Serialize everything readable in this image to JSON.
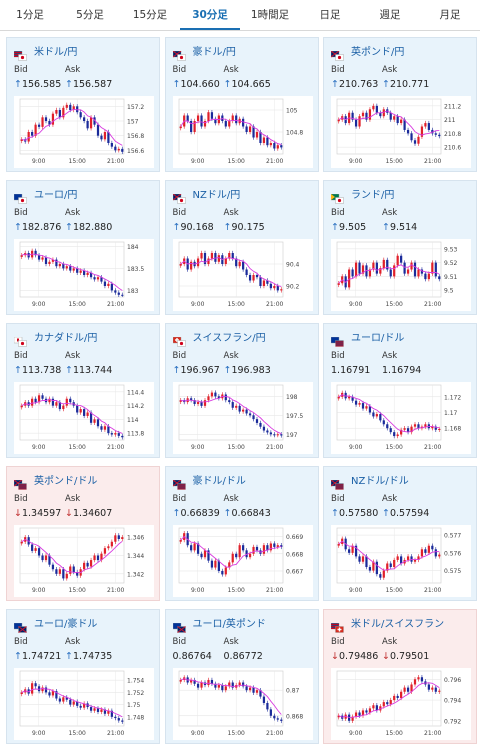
{
  "tabs": [
    {
      "label": "1分足",
      "active": false
    },
    {
      "label": "5分足",
      "active": false
    },
    {
      "label": "15分足",
      "active": false
    },
    {
      "label": "30分足",
      "active": true
    },
    {
      "label": "1時間足",
      "active": false
    },
    {
      "label": "日足",
      "active": false
    },
    {
      "label": "週足",
      "active": false
    },
    {
      "label": "月足",
      "active": false
    }
  ],
  "labels": {
    "bid": "Bid",
    "ask": "Ask"
  },
  "colors": {
    "up_candle": "#e0202a",
    "down_candle": "#1a2a9a",
    "ma_line": "#d83be0",
    "link": "#1a5fa5",
    "arrow_up": "#2a6fc0",
    "arrow_down": "#c03030"
  },
  "cards": [
    {
      "pair": "米ドル/円",
      "flag": "us-jp",
      "bid": "156.585",
      "ask": "156.587",
      "dir": "up",
      "chart_data": {
        "type": "candlestick",
        "x_ticks": [
          "9:00",
          "15:00",
          "21:00"
        ],
        "y_ticks": [
          "157.2",
          "157",
          "156.8",
          "156.6"
        ],
        "y_range": [
          156.55,
          157.3
        ],
        "closes": [
          156.75,
          156.72,
          156.85,
          156.8,
          156.95,
          156.92,
          157.05,
          157.0,
          156.95,
          157.1,
          157.15,
          157.05,
          157.18,
          157.22,
          157.15,
          157.2,
          157.12,
          157.05,
          157.0,
          156.9,
          157.05,
          156.95,
          156.8,
          156.75,
          156.85,
          156.7,
          156.65,
          156.6,
          156.62,
          156.58
        ]
      }
    },
    {
      "pair": "豪ドル/円",
      "flag": "au-jp",
      "bid": "104.660",
      "ask": "104.665",
      "dir": "up",
      "chart_data": {
        "type": "candlestick",
        "x_ticks": [
          "9:00",
          "15:00",
          "21:00"
        ],
        "y_ticks": [
          "105",
          "104.8"
        ],
        "y_range": [
          104.6,
          105.1
        ],
        "closes": [
          104.85,
          104.95,
          104.9,
          104.8,
          104.9,
          104.95,
          104.85,
          104.9,
          104.98,
          104.92,
          104.88,
          104.95,
          104.9,
          104.85,
          104.9,
          104.95,
          104.88,
          104.92,
          104.85,
          104.8,
          104.85,
          104.75,
          104.8,
          104.7,
          104.75,
          104.68,
          104.7,
          104.65,
          104.68,
          104.66
        ]
      }
    },
    {
      "pair": "英ポンド/円",
      "flag": "gb-jp",
      "bid": "210.763",
      "ask": "210.771",
      "dir": "up",
      "chart_data": {
        "type": "candlestick",
        "x_ticks": [
          "9:00",
          "15:00",
          "21:00"
        ],
        "y_ticks": [
          "211.2",
          "211",
          "210.8",
          "210.6"
        ],
        "y_range": [
          210.5,
          211.3
        ],
        "closes": [
          211.0,
          211.05,
          210.95,
          211.1,
          211.0,
          210.9,
          211.05,
          211.1,
          211.0,
          211.15,
          211.2,
          211.1,
          211.05,
          211.15,
          211.1,
          211.0,
          211.05,
          210.95,
          211.0,
          210.85,
          210.8,
          210.7,
          210.65,
          210.75,
          210.9,
          210.95,
          210.85,
          210.8,
          210.78,
          210.76
        ]
      }
    },
    {
      "pair": "ユーロ/円",
      "flag": "eu-jp",
      "bid": "182.876",
      "ask": "182.880",
      "dir": "up",
      "chart_data": {
        "type": "candlestick",
        "x_ticks": [
          "9:00",
          "15:00",
          "21:00"
        ],
        "y_ticks": [
          "184",
          "183.5",
          "183"
        ],
        "y_range": [
          182.85,
          184.1
        ],
        "closes": [
          183.8,
          183.85,
          183.75,
          183.9,
          183.8,
          183.7,
          183.75,
          183.6,
          183.65,
          183.7,
          183.55,
          183.6,
          183.5,
          183.55,
          183.45,
          183.5,
          183.4,
          183.45,
          183.35,
          183.4,
          183.3,
          183.25,
          183.3,
          183.2,
          183.1,
          183.15,
          183.0,
          182.95,
          182.9,
          182.88
        ]
      }
    },
    {
      "pair": "NZドル/円",
      "flag": "nz-jp",
      "bid": "90.168",
      "ask": "90.175",
      "dir": "up",
      "chart_data": {
        "type": "candlestick",
        "x_ticks": [
          "9:00",
          "15:00",
          "21:00"
        ],
        "y_ticks": [
          "90.4",
          "90.2"
        ],
        "y_range": [
          90.1,
          90.6
        ],
        "closes": [
          90.4,
          90.45,
          90.35,
          90.42,
          90.38,
          90.45,
          90.5,
          90.4,
          90.45,
          90.5,
          90.42,
          90.48,
          90.4,
          90.45,
          90.5,
          90.45,
          90.38,
          90.42,
          90.35,
          90.3,
          90.25,
          90.3,
          90.28,
          90.2,
          90.25,
          90.22,
          90.18,
          90.2,
          90.16,
          90.17
        ]
      }
    },
    {
      "pair": "ランド/円",
      "flag": "za-jp",
      "bid": "9.505",
      "ask": "9.514",
      "dir": "up",
      "chart_data": {
        "type": "candlestick",
        "x_ticks": [
          "9:00",
          "15:00",
          "21:00"
        ],
        "y_ticks": [
          "9.53",
          "9.52",
          "9.51",
          "9.5"
        ],
        "y_range": [
          9.495,
          9.535
        ],
        "closes": [
          9.505,
          9.51,
          9.502,
          9.515,
          9.51,
          9.52,
          9.512,
          9.518,
          9.51,
          9.515,
          9.52,
          9.512,
          9.516,
          9.522,
          9.515,
          9.51,
          9.518,
          9.525,
          9.52,
          9.512,
          9.515,
          9.52,
          9.51,
          9.515,
          9.512,
          9.508,
          9.512,
          9.52,
          9.51,
          9.508
        ]
      }
    },
    {
      "pair": "カナダドル/円",
      "flag": "ca-jp",
      "bid": "113.738",
      "ask": "113.744",
      "dir": "up",
      "chart_data": {
        "type": "candlestick",
        "x_ticks": [
          "9:00",
          "15:00",
          "21:00"
        ],
        "y_ticks": [
          "114.4",
          "114.2",
          "114",
          "113.8"
        ],
        "y_range": [
          113.7,
          114.5
        ],
        "closes": [
          114.2,
          114.25,
          114.2,
          114.3,
          114.25,
          114.35,
          114.3,
          114.25,
          114.3,
          114.2,
          114.25,
          114.15,
          114.2,
          114.3,
          114.25,
          114.2,
          114.1,
          114.15,
          114.05,
          114.1,
          113.95,
          114.0,
          113.9,
          113.85,
          113.9,
          113.8,
          113.78,
          113.8,
          113.76,
          113.74
        ]
      }
    },
    {
      "pair": "スイスフラン/円",
      "flag": "ch-jp",
      "bid": "196.967",
      "ask": "196.983",
      "dir": "up",
      "chart_data": {
        "type": "candlestick",
        "x_ticks": [
          "9:00",
          "15:00",
          "21:00"
        ],
        "y_ticks": [
          "198",
          "197.5",
          "197"
        ],
        "y_range": [
          196.85,
          198.3
        ],
        "closes": [
          197.9,
          197.85,
          197.95,
          197.9,
          197.8,
          197.85,
          197.75,
          197.9,
          198.0,
          198.1,
          198.0,
          197.95,
          198.05,
          197.9,
          197.85,
          197.7,
          197.75,
          197.6,
          197.65,
          197.55,
          197.5,
          197.4,
          197.3,
          197.2,
          197.1,
          197.05,
          197.0,
          196.98,
          197.0,
          196.97
        ]
      }
    },
    {
      "pair": "ユーロ/ドル",
      "flag": "eu-us",
      "bid": "1.16791",
      "ask": "1.16794",
      "dir": "none",
      "chart_data": {
        "type": "candlestick",
        "x_ticks": [
          "9:00",
          "15:00",
          "21:00"
        ],
        "y_ticks": [
          "1.172",
          "1.17",
          "1.168"
        ],
        "y_range": [
          1.1665,
          1.1735
        ],
        "closes": [
          1.172,
          1.1725,
          1.1718,
          1.172,
          1.1715,
          1.171,
          1.1712,
          1.1705,
          1.1708,
          1.17,
          1.1695,
          1.1698,
          1.169,
          1.1685,
          1.168,
          1.1675,
          1.167,
          1.1672,
          1.1678,
          1.168,
          1.1675,
          1.1682,
          1.1685,
          1.168,
          1.1682,
          1.1685,
          1.168,
          1.1682,
          1.1678,
          1.1679
        ]
      }
    },
    {
      "pair": "英ポンド/ドル",
      "flag": "gb-us",
      "bid": "1.34597",
      "ask": "1.34607",
      "dir": "down",
      "chart_data": {
        "type": "candlestick",
        "x_ticks": [
          "9:00",
          "15:00",
          "21:00"
        ],
        "y_ticks": [
          "1.346",
          "1.344",
          "1.342"
        ],
        "y_range": [
          1.341,
          1.347
        ],
        "closes": [
          1.3455,
          1.346,
          1.3452,
          1.3445,
          1.3448,
          1.344,
          1.3435,
          1.344,
          1.343,
          1.3425,
          1.342,
          1.3425,
          1.3415,
          1.342,
          1.3428,
          1.3422,
          1.3418,
          1.3425,
          1.3432,
          1.3428,
          1.3435,
          1.344,
          1.3435,
          1.3442,
          1.3448,
          1.345,
          1.3455,
          1.3462,
          1.3458,
          1.346
        ]
      }
    },
    {
      "pair": "豪ドル/ドル",
      "flag": "au-us",
      "bid": "0.66839",
      "ask": "0.66843",
      "dir": "up",
      "chart_data": {
        "type": "candlestick",
        "x_ticks": [
          "9:00",
          "15:00",
          "21:00"
        ],
        "y_ticks": [
          "0.669",
          "0.668",
          "0.667"
        ],
        "y_range": [
          0.6663,
          0.6695
        ],
        "closes": [
          0.6688,
          0.6692,
          0.6685,
          0.6682,
          0.6686,
          0.668,
          0.6678,
          0.6682,
          0.6676,
          0.6672,
          0.6676,
          0.667,
          0.6668,
          0.6672,
          0.6675,
          0.668,
          0.6678,
          0.6685,
          0.6682,
          0.6678,
          0.668,
          0.6684,
          0.6682,
          0.668,
          0.6685,
          0.6682,
          0.6686,
          0.6684,
          0.6685,
          0.6684
        ]
      }
    },
    {
      "pair": "NZドル/ドル",
      "flag": "nz-us",
      "bid": "0.57580",
      "ask": "0.57594",
      "dir": "up",
      "chart_data": {
        "type": "candlestick",
        "x_ticks": [
          "9:00",
          "15:00",
          "21:00"
        ],
        "y_ticks": [
          "0.577",
          "0.576",
          "0.575"
        ],
        "y_range": [
          0.5743,
          0.5774
        ],
        "closes": [
          0.5765,
          0.5768,
          0.5762,
          0.576,
          0.5764,
          0.5758,
          0.5755,
          0.5758,
          0.5752,
          0.575,
          0.5755,
          0.5748,
          0.5746,
          0.575,
          0.5754,
          0.5752,
          0.5756,
          0.5758,
          0.5754,
          0.5756,
          0.5758,
          0.5755,
          0.5756,
          0.5758,
          0.5762,
          0.576,
          0.5764,
          0.5762,
          0.5758,
          0.5759
        ]
      }
    },
    {
      "pair": "ユーロ/豪ドル",
      "flag": "eu-au",
      "bid": "1.74721",
      "ask": "1.74735",
      "dir": "up",
      "chart_data": {
        "type": "candlestick",
        "x_ticks": [
          "9:00",
          "15:00",
          "21:00"
        ],
        "y_ticks": [
          "1.754",
          "1.752",
          "1.75",
          "1.748"
        ],
        "y_range": [
          1.7465,
          1.7555
        ],
        "closes": [
          1.752,
          1.7525,
          1.7518,
          1.7535,
          1.753,
          1.7522,
          1.7528,
          1.752,
          1.7515,
          1.7522,
          1.751,
          1.7505,
          1.7512,
          1.7508,
          1.75,
          1.7505,
          1.7498,
          1.7495,
          1.7502,
          1.7496,
          1.749,
          1.7494,
          1.7488,
          1.7492,
          1.7485,
          1.749,
          1.748,
          1.7478,
          1.7474,
          1.7472
        ]
      }
    },
    {
      "pair": "ユーロ/英ポンド",
      "flag": "eu-gb",
      "bid": "0.86764",
      "ask": "0.86772",
      "dir": "none",
      "chart_data": {
        "type": "candlestick",
        "x_ticks": [
          "9:00",
          "15:00",
          "21:00"
        ],
        "y_ticks": [
          "0.87",
          "0.868"
        ],
        "y_range": [
          0.8672,
          0.8715
        ],
        "closes": [
          0.8708,
          0.871,
          0.8706,
          0.8708,
          0.8705,
          0.8702,
          0.8706,
          0.8704,
          0.8708,
          0.8705,
          0.8702,
          0.8704,
          0.87,
          0.8703,
          0.8706,
          0.8702,
          0.8704,
          0.8706,
          0.8703,
          0.87,
          0.8702,
          0.8698,
          0.87,
          0.8695,
          0.869,
          0.8685,
          0.868,
          0.8678,
          0.8677,
          0.8676
        ]
      }
    },
    {
      "pair": "米ドル/スイスフラン",
      "flag": "us-ch",
      "bid": "0.79486",
      "ask": "0.79501",
      "dir": "down",
      "chart_data": {
        "type": "candlestick",
        "x_ticks": [
          "9:00",
          "15:00",
          "21:00"
        ],
        "y_ticks": [
          "0.796",
          "0.794",
          "0.792"
        ],
        "y_range": [
          0.7915,
          0.7968
        ],
        "closes": [
          0.7925,
          0.7922,
          0.7926,
          0.792,
          0.7924,
          0.7928,
          0.7925,
          0.793,
          0.7928,
          0.7932,
          0.7935,
          0.793,
          0.7934,
          0.7938,
          0.7936,
          0.794,
          0.7944,
          0.7942,
          0.7948,
          0.7952,
          0.7948,
          0.7955,
          0.796,
          0.7962,
          0.7958,
          0.7955,
          0.795,
          0.7952,
          0.7948,
          0.7949
        ]
      }
    }
  ]
}
